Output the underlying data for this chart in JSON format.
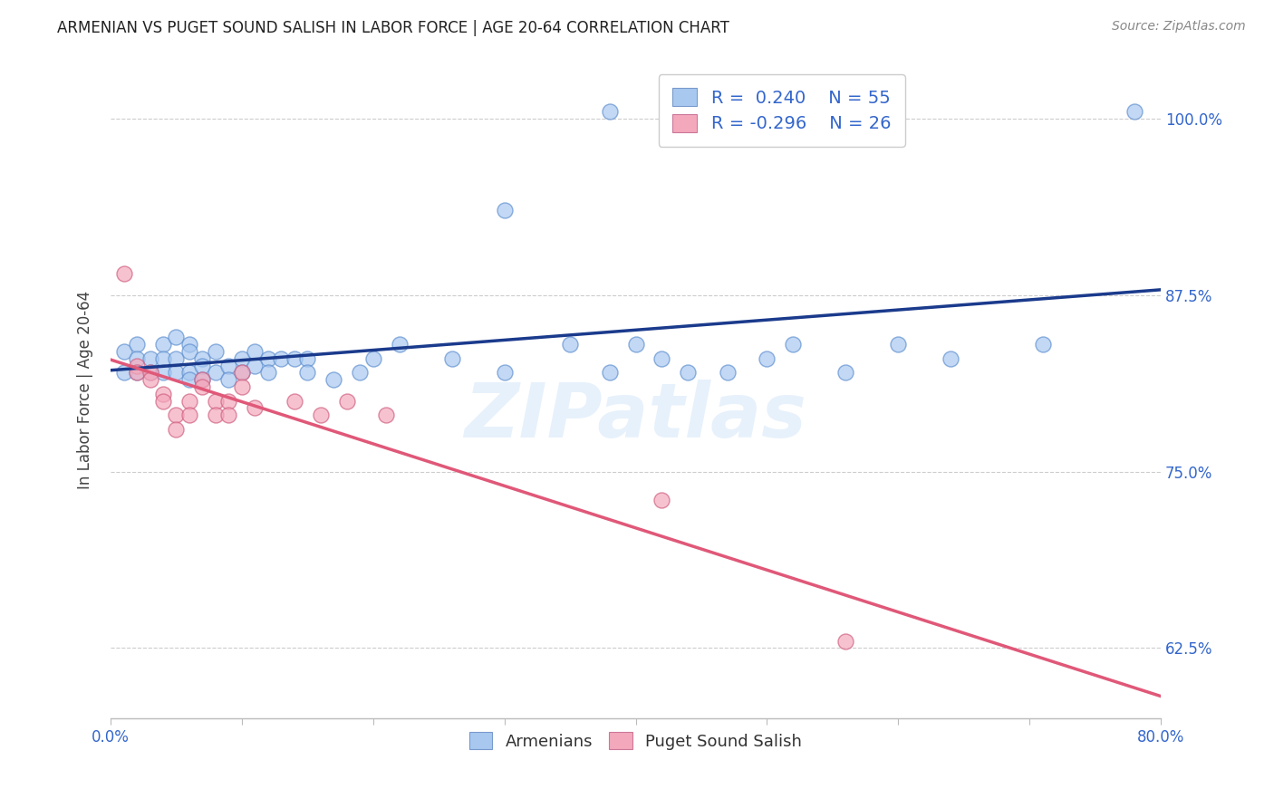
{
  "title": "ARMENIAN VS PUGET SOUND SALISH IN LABOR FORCE | AGE 20-64 CORRELATION CHART",
  "source": "Source: ZipAtlas.com",
  "ylabel": "In Labor Force | Age 20-64",
  "ytick_labels": [
    "62.5%",
    "75.0%",
    "87.5%",
    "100.0%"
  ],
  "ytick_values": [
    0.625,
    0.75,
    0.875,
    1.0
  ],
  "xlim": [
    0.0,
    0.8
  ],
  "ylim": [
    0.575,
    1.04
  ],
  "legend_r_armenian": "0.240",
  "legend_n_armenian": "55",
  "legend_r_salish": "-0.296",
  "legend_n_salish": "26",
  "armenian_color": "#a8c8f0",
  "salish_color": "#f4a8bc",
  "trendline_armenian_color": "#1a3a8c",
  "trendline_salish_color": "#e05878",
  "watermark": "ZIPatlas",
  "armenian_x": [
    0.38,
    0.3,
    0.01,
    0.01,
    0.02,
    0.02,
    0.02,
    0.03,
    0.03,
    0.04,
    0.04,
    0.04,
    0.05,
    0.05,
    0.05,
    0.06,
    0.06,
    0.06,
    0.06,
    0.07,
    0.07,
    0.07,
    0.08,
    0.08,
    0.09,
    0.09,
    0.1,
    0.1,
    0.11,
    0.11,
    0.12,
    0.12,
    0.13,
    0.14,
    0.15,
    0.15,
    0.17,
    0.19,
    0.2,
    0.22,
    0.26,
    0.3,
    0.35,
    0.38,
    0.4,
    0.42,
    0.44,
    0.47,
    0.5,
    0.52,
    0.56,
    0.6,
    0.64,
    0.71,
    0.78
  ],
  "armenian_y": [
    1.005,
    0.935,
    0.835,
    0.82,
    0.84,
    0.83,
    0.82,
    0.83,
    0.82,
    0.84,
    0.83,
    0.82,
    0.845,
    0.83,
    0.82,
    0.84,
    0.835,
    0.82,
    0.815,
    0.83,
    0.825,
    0.815,
    0.835,
    0.82,
    0.825,
    0.815,
    0.83,
    0.82,
    0.835,
    0.825,
    0.83,
    0.82,
    0.83,
    0.83,
    0.83,
    0.82,
    0.815,
    0.82,
    0.83,
    0.84,
    0.83,
    0.82,
    0.84,
    0.82,
    0.84,
    0.83,
    0.82,
    0.82,
    0.83,
    0.84,
    0.82,
    0.84,
    0.83,
    0.84,
    1.005
  ],
  "salish_x": [
    0.01,
    0.02,
    0.02,
    0.03,
    0.03,
    0.04,
    0.04,
    0.05,
    0.05,
    0.06,
    0.06,
    0.07,
    0.07,
    0.08,
    0.08,
    0.09,
    0.09,
    0.1,
    0.1,
    0.11,
    0.14,
    0.16,
    0.18,
    0.21,
    0.42,
    0.56
  ],
  "salish_y": [
    0.89,
    0.825,
    0.82,
    0.82,
    0.815,
    0.805,
    0.8,
    0.79,
    0.78,
    0.8,
    0.79,
    0.815,
    0.81,
    0.8,
    0.79,
    0.8,
    0.79,
    0.82,
    0.81,
    0.795,
    0.8,
    0.79,
    0.8,
    0.79,
    0.73,
    0.63
  ],
  "background_color": "#ffffff",
  "grid_color": "#cccccc"
}
